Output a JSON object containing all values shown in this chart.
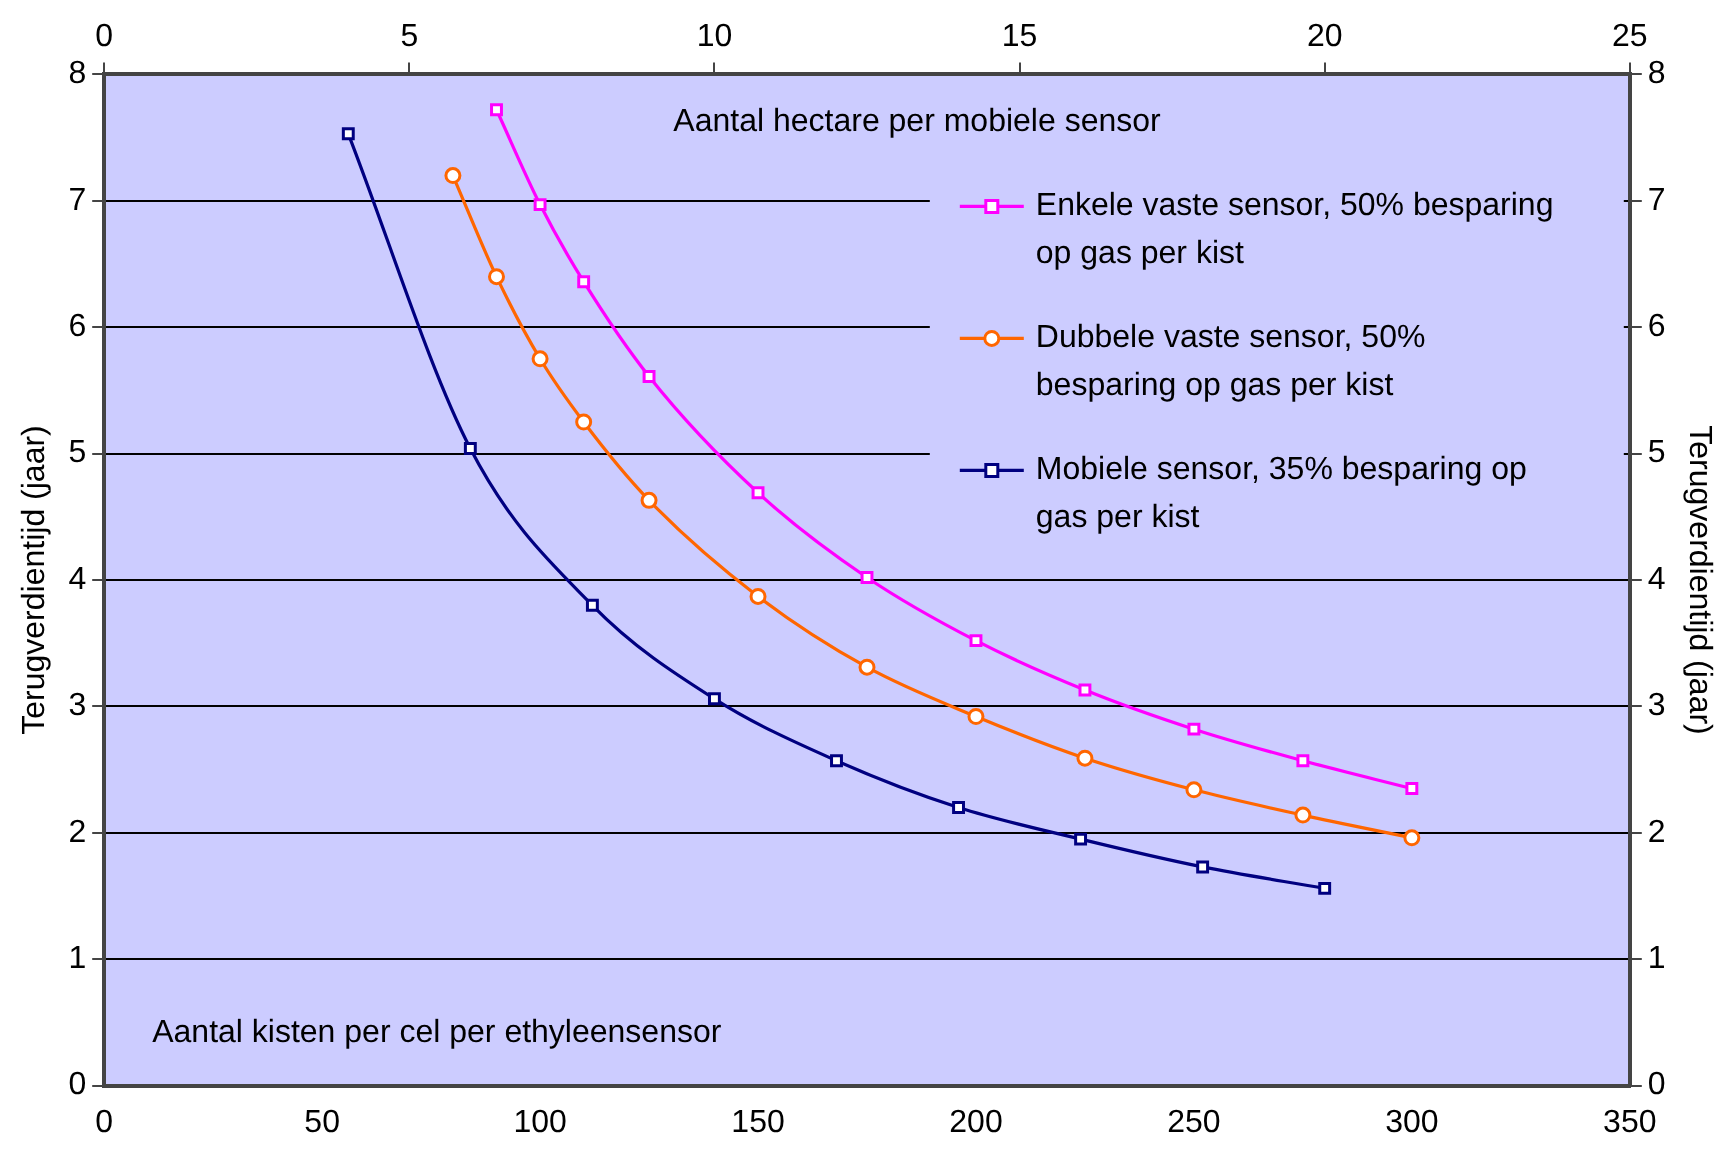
{
  "chart_data": {
    "type": "line",
    "xlabel": "Aantal kisten per cel per ethyleensensor",
    "x2label": "Aantal hectare per mobiele sensor",
    "ylabel": "Terugverdientijd (jaar)",
    "y2label": "Terugverdientijd (jaar)",
    "xlim": [
      0,
      350
    ],
    "xticks": [
      0,
      50,
      100,
      150,
      200,
      250,
      300,
      350
    ],
    "x2lim": [
      0,
      25
    ],
    "x2ticks": [
      0,
      5,
      10,
      15,
      20,
      25
    ],
    "ylim": [
      0,
      8
    ],
    "yticks": [
      0,
      1,
      2,
      3,
      4,
      5,
      6,
      7,
      8
    ],
    "y2lim": [
      0,
      8
    ],
    "y2ticks": [
      0,
      1,
      2,
      3,
      4,
      5,
      6,
      7,
      8
    ],
    "grid": "y",
    "legend": "top right",
    "series": [
      {
        "name": "Enkele vaste sensor, 50% besparing op gas per kist",
        "color": "#ff00ff",
        "marker": "square",
        "x": [
          90,
          100,
          110,
          125,
          150,
          175,
          200,
          225,
          250,
          275,
          300
        ],
        "values": [
          7.72,
          6.97,
          6.36,
          5.61,
          4.69,
          4.02,
          3.52,
          3.13,
          2.82,
          2.57,
          2.35
        ]
      },
      {
        "name": "Dubbele vaste sensor, 50% besparing op gas per kist",
        "color": "#ff6600",
        "marker": "circle",
        "x": [
          80,
          90,
          100,
          110,
          125,
          150,
          175,
          200,
          225,
          250,
          275,
          300
        ],
        "values": [
          7.2,
          6.4,
          5.75,
          5.25,
          4.63,
          3.87,
          3.31,
          2.92,
          2.59,
          2.34,
          2.14,
          1.96
        ]
      },
      {
        "name": "Mobiele sensor, 35% besparing op gas per kist",
        "color": "#000080",
        "marker": "square",
        "axis": "x2",
        "x": [
          4,
          6,
          8,
          10,
          12,
          14,
          16,
          18,
          20
        ],
        "values": [
          7.53,
          5.04,
          3.8,
          3.06,
          2.57,
          2.2,
          1.95,
          1.73,
          1.56
        ]
      }
    ]
  }
}
